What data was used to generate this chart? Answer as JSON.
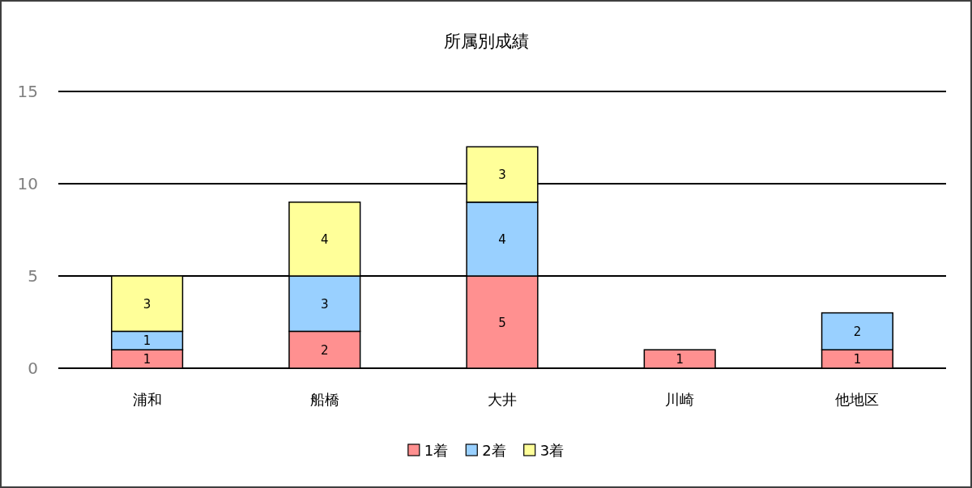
{
  "chart_data": {
    "type": "bar",
    "title": "所属別成績",
    "categories": [
      "浦和",
      "船橋",
      "大井",
      "川崎",
      "他地区"
    ],
    "series": [
      {
        "name": "1着",
        "color": "#ff9090",
        "values": [
          1,
          2,
          5,
          1,
          1
        ]
      },
      {
        "name": "2着",
        "color": "#99d0ff",
        "values": [
          1,
          3,
          4,
          null,
          2
        ]
      },
      {
        "name": "3着",
        "color": "#ffff99",
        "values": [
          3,
          4,
          3,
          null,
          null
        ]
      }
    ],
    "stacked": true,
    "ylim": [
      0,
      15
    ],
    "yticks": [
      0,
      5,
      10,
      15
    ],
    "grid": "y",
    "legend": "bottom",
    "data_labels": true
  }
}
